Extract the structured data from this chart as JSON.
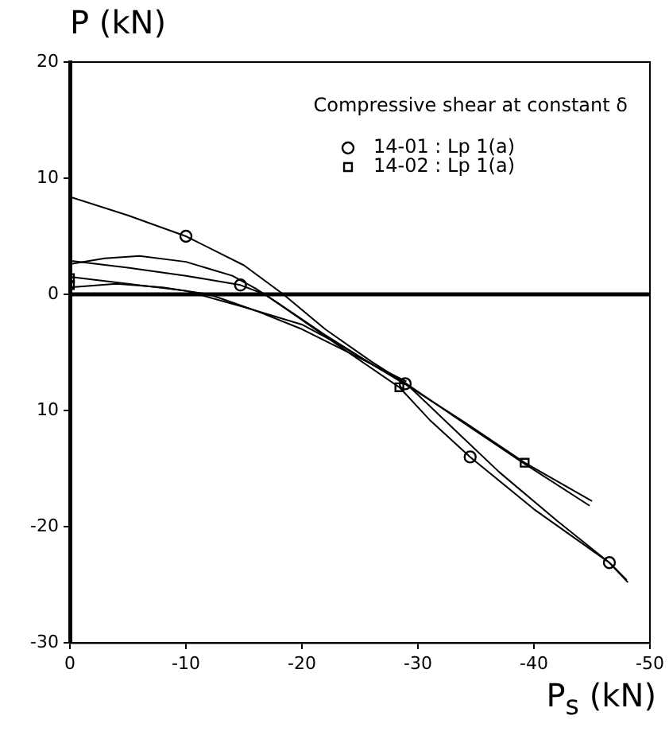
{
  "chart_data": {
    "type": "line",
    "xlabel": "P$_{s}$ (kN)",
    "ylabel": "P (kN)",
    "legend_title": "Compressive shear at constant δ",
    "legend": "top right",
    "grid": false,
    "line_style": "solid",
    "xlim": [
      0,
      -50
    ],
    "xticks": [
      0,
      -10,
      -20,
      -30,
      -40,
      -50
    ],
    "ylim": [
      -30,
      20
    ],
    "yticks": [
      {
        "value": -30,
        "label": "-30"
      },
      {
        "value": -20,
        "label": "-20"
      },
      {
        "value": -10,
        "label": "10"
      },
      0,
      10,
      20
    ],
    "ref_lines": [
      {
        "axis": "y",
        "value": 0,
        "color": "#000000"
      }
    ],
    "series": [
      {
        "type": "line",
        "color": "#000000",
        "marker": "none",
        "x": [
          0,
          -5,
          -10,
          -15,
          -18.4,
          -22,
          -26,
          -29,
          -33,
          -37,
          -42,
          -46.5,
          -48.1
        ],
        "values": [
          8.4,
          6.8,
          5.0,
          2.5,
          0,
          -3,
          -5.8,
          -7.7,
          -11.5,
          -15.3,
          -19.5,
          -23.1,
          -24.8
        ]
      },
      {
        "type": "line",
        "color": "#000000",
        "marker": "none",
        "x": [
          0,
          -5,
          -10,
          -14.7,
          -16.8,
          -20,
          -24,
          -28.4,
          -31,
          -34.5,
          -40,
          -46.5,
          -48
        ],
        "values": [
          2.9,
          2.3,
          1.6,
          0.8,
          0,
          -2.2,
          -5,
          -8,
          -10.8,
          -14,
          -18.5,
          -23.1,
          -24.6
        ]
      },
      {
        "type": "line",
        "color": "#000000",
        "marker": "none",
        "x": [
          0,
          -3,
          -6,
          -10,
          -14,
          -16,
          -18,
          -22,
          -26,
          -29,
          -34,
          -39.2,
          -45
        ],
        "values": [
          2.6,
          3.1,
          3.3,
          2.8,
          1.6,
          0.5,
          -0.8,
          -3.5,
          -6,
          -7.8,
          -11,
          -14.5,
          -17.8
        ]
      },
      {
        "type": "line",
        "color": "#000000",
        "marker": "none",
        "x": [
          0,
          -5,
          -10,
          -15,
          -20,
          -23,
          -26,
          -29,
          -34,
          -39.2,
          -44.8
        ],
        "values": [
          1.5,
          0.9,
          0.3,
          -1.1,
          -2.6,
          -4.2,
          -6,
          -7.7,
          -11.1,
          -14.6,
          -18.2
        ]
      },
      {
        "type": "line",
        "color": "#000000",
        "marker": "none",
        "x": [
          0,
          -4,
          -8,
          -12,
          -16,
          -20,
          -23,
          -26,
          -29
        ],
        "values": [
          0.6,
          0.9,
          0.6,
          0,
          -1.4,
          -3,
          -4.5,
          -6,
          -7.5
        ]
      },
      {
        "type": "scatter",
        "name": "14-01 : Lp 1(a)",
        "color": "#000000",
        "marker": "circle",
        "x": [
          -10,
          -14.7,
          -28.9,
          -34.5,
          -46.5
        ],
        "values": [
          5,
          0.8,
          -7.7,
          -14,
          -23.1
        ]
      },
      {
        "type": "scatter",
        "name": "14-02 : Lp 1(a)",
        "color": "#000000",
        "marker": "square",
        "x": [
          0,
          0,
          -28.4,
          -39.2
        ],
        "values": [
          1.4,
          0.8,
          -8,
          -14.5
        ]
      }
    ]
  }
}
